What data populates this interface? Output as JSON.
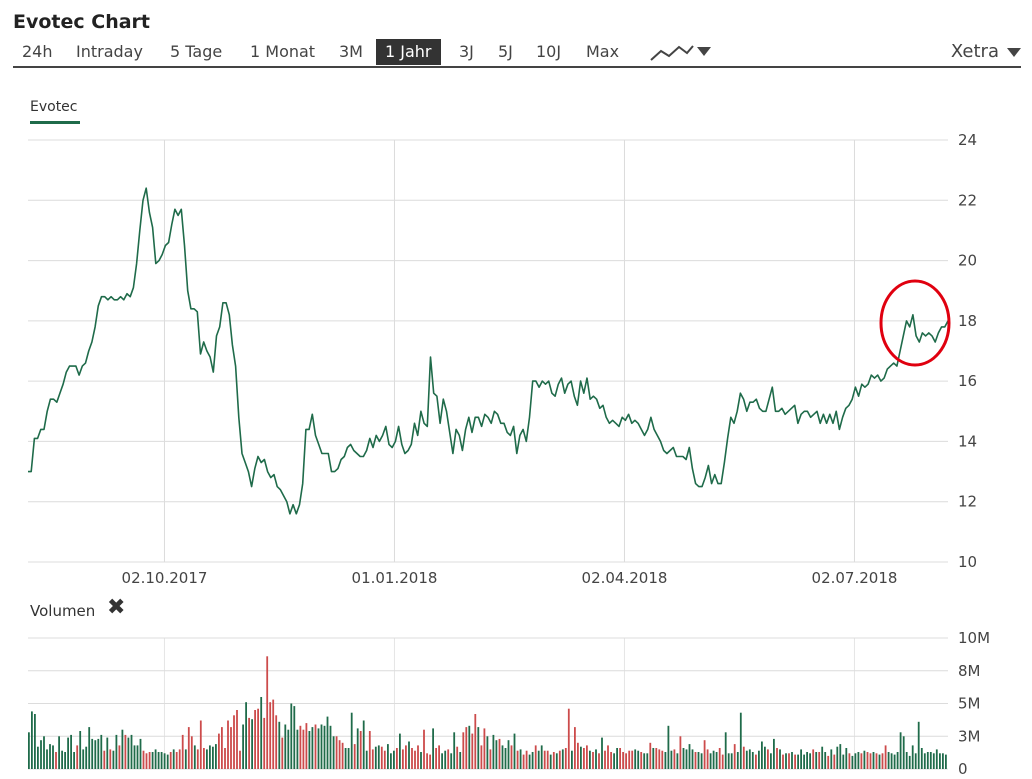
{
  "header": {
    "title": "Evotec Chart"
  },
  "tabs": [
    {
      "label": "24h"
    },
    {
      "label": "Intraday"
    },
    {
      "label": "5 Tage"
    },
    {
      "label": "1 Monat"
    },
    {
      "label": "3M"
    },
    {
      "label": "1 Jahr",
      "active": true
    },
    {
      "label": "3J"
    },
    {
      "label": "5J"
    },
    {
      "label": "10J"
    },
    {
      "label": "Max"
    }
  ],
  "exchange": {
    "label": "Xetra"
  },
  "legend": {
    "label": "Evotec",
    "color": "#1f6b4a"
  },
  "volume": {
    "label": "Volumen",
    "close_icon": "close-icon"
  },
  "chart_data": [
    {
      "type": "line",
      "series": [
        {
          "name": "Evotec",
          "color": "#1f6b4a",
          "values": [
            13.0,
            13.0,
            14.1,
            14.1,
            14.4,
            14.4,
            15.0,
            15.4,
            15.4,
            15.3,
            15.6,
            15.9,
            16.3,
            16.5,
            16.5,
            16.5,
            16.2,
            16.5,
            16.6,
            17.0,
            17.3,
            17.8,
            18.5,
            18.8,
            18.8,
            18.7,
            18.8,
            18.7,
            18.7,
            18.8,
            18.7,
            18.9,
            18.8,
            19.1,
            19.9,
            21.0,
            22.0,
            22.4,
            21.6,
            21.1,
            19.9,
            20.0,
            20.2,
            20.5,
            20.6,
            21.2,
            21.7,
            21.5,
            21.7,
            20.5,
            19.0,
            18.4,
            18.4,
            18.3,
            16.9,
            17.3,
            17.0,
            16.8,
            16.3,
            17.5,
            17.8,
            18.6,
            18.6,
            18.2,
            17.2,
            16.5,
            14.8,
            13.6,
            13.3,
            13.0,
            12.5,
            13.1,
            13.5,
            13.3,
            13.4,
            13.0,
            12.8,
            12.9,
            12.5,
            12.4,
            12.2,
            12.0,
            11.6,
            11.9,
            11.6,
            11.9,
            12.6,
            14.4,
            14.4,
            14.9,
            14.2,
            13.9,
            13.6,
            13.6,
            13.6,
            13.0,
            13.0,
            13.1,
            13.4,
            13.5,
            13.8,
            13.9,
            13.7,
            13.6,
            13.5,
            13.5,
            13.7,
            14.1,
            13.8,
            14.2,
            14.0,
            14.2,
            14.5,
            13.9,
            13.8,
            14.0,
            14.5,
            13.9,
            13.6,
            13.7,
            13.9,
            14.6,
            14.2,
            15.0,
            14.6,
            14.5,
            16.8,
            15.6,
            15.5,
            14.6,
            15.4,
            15.0,
            14.3,
            13.6,
            14.4,
            14.2,
            13.7,
            14.4,
            14.8,
            14.3,
            14.8,
            14.8,
            14.5,
            14.9,
            14.8,
            14.6,
            15.0,
            14.9,
            14.6,
            14.6,
            14.3,
            14.2,
            14.5,
            13.6,
            14.2,
            14.4,
            14.0,
            14.8,
            16.0,
            16.0,
            15.8,
            16.0,
            15.9,
            16.0,
            15.6,
            15.5,
            15.9,
            16.1,
            15.6,
            15.9,
            16.0,
            15.5,
            15.2,
            16.0,
            15.6,
            16.1,
            15.4,
            15.5,
            15.4,
            15.1,
            15.2,
            14.8,
            14.6,
            14.7,
            14.6,
            14.5,
            14.8,
            14.7,
            14.9,
            14.6,
            14.7,
            14.6,
            14.4,
            14.2,
            14.4,
            14.8,
            14.4,
            14.2,
            14.0,
            13.7,
            13.6,
            13.7,
            13.8,
            13.5,
            13.5,
            13.5,
            13.4,
            13.8,
            13.1,
            12.6,
            12.5,
            12.5,
            12.8,
            13.2,
            12.6,
            12.9,
            12.6,
            12.6,
            13.3,
            14.1,
            14.8,
            14.6,
            15.0,
            15.6,
            15.4,
            15.0,
            15.3,
            15.3,
            15.4,
            15.1,
            15.0,
            15.0,
            15.4,
            15.8,
            15.0,
            15.0,
            15.1,
            14.9,
            15.0,
            15.1,
            15.2,
            14.6,
            14.9,
            15.0,
            15.0,
            14.8,
            14.9,
            15.0,
            14.6,
            14.9,
            14.6,
            14.9,
            14.6,
            15.0,
            14.4,
            14.8,
            15.1,
            15.2,
            15.4,
            15.8,
            15.5,
            15.9,
            15.8,
            15.9,
            16.2,
            16.1,
            16.2,
            16.0,
            16.1,
            16.4,
            16.5,
            16.6,
            16.5,
            17.0,
            17.5,
            18.0,
            17.8,
            18.2,
            17.5,
            17.3,
            17.6,
            17.5,
            17.6,
            17.5,
            17.3,
            17.6,
            17.8,
            17.8,
            18.0
          ]
        }
      ],
      "x_start": "2017-08-09",
      "x_end": "2018-08-08",
      "x_ticks": [
        "02.10.2017",
        "01.01.2018",
        "02.04.2018",
        "02.07.2018"
      ],
      "y_ticks": [
        "24",
        "22",
        "20",
        "18",
        "16",
        "14",
        "12",
        "10"
      ],
      "ylim": [
        10,
        24
      ],
      "grid": true,
      "legend": "top-left",
      "annotation": "red circle around last values"
    },
    {
      "type": "bar",
      "series": [
        {
          "name": "Volumen",
          "colors": [
            "#1f6b4a",
            "#cc4b4b"
          ],
          "values": [
            2.8,
            4.4,
            4.2,
            1.7,
            2.2,
            2.5,
            1.5,
            1.9,
            1.8,
            1.3,
            2.5,
            1.4,
            1.3,
            2.4,
            2.6,
            1.3,
            1.8,
            2.9,
            1.5,
            1.7,
            3.2,
            2.3,
            2.2,
            2.3,
            2.6,
            1.4,
            2.4,
            1.5,
            1.4,
            2.6,
            1.8,
            3.0,
            2.6,
            2.4,
            2.6,
            1.8,
            1.8,
            2.3,
            1.4,
            1.2,
            1.3,
            1.3,
            1.5,
            1.3,
            1.3,
            1.2,
            1.1,
            1.3,
            1.5,
            1.3,
            1.5,
            2.6,
            1.5,
            3.2,
            2.5,
            1.8,
            1.5,
            3.7,
            1.6,
            1.5,
            1.8,
            1.7,
            1.9,
            2.7,
            3.2,
            1.6,
            3.7,
            3.2,
            4.1,
            4.5,
            1.4,
            3.4,
            5.1,
            3.9,
            3.8,
            4.5,
            4.6,
            5.5,
            3.9,
            8.6,
            5.1,
            5.3,
            4.1,
            3.6,
            2.4,
            3.4,
            3.0,
            5.0,
            4.8,
            3.0,
            3.3,
            3.0,
            3.5,
            2.9,
            3.2,
            3.4,
            3.1,
            3.4,
            3.3,
            4.0,
            3.3,
            2.5,
            2.5,
            2.2,
            2.0,
            1.6,
            1.6,
            4.3,
            1.9,
            3.1,
            2.9,
            3.7,
            1.4,
            2.9,
            1.5,
            1.7,
            1.8,
            1.7,
            1.4,
            1.9,
            1.2,
            1.4,
            1.6,
            2.7,
            1.5,
            1.8,
            2.1,
            1.6,
            1.4,
            1.8,
            1.3,
            3.0,
            1.2,
            1.1,
            3.1,
            1.6,
            1.8,
            1.2,
            1.4,
            1.5,
            1.2,
            2.8,
            1.7,
            1.3,
            2.8,
            3.2,
            3.3,
            2.7,
            4.2,
            3.2,
            1.8,
            3.1,
            2.5,
            1.5,
            2.6,
            2.2,
            2.3,
            1.8,
            1.6,
            2.2,
            1.8,
            2.7,
            1.4,
            1.5,
            1.1,
            1.4,
            1.1,
            1.3,
            1.8,
            1.4,
            1.8,
            1.4,
            1.4,
            1.1,
            1.3,
            1.2,
            1.4,
            1.5,
            1.6,
            4.6,
            1.4,
            3.2,
            2.0,
            1.7,
            1.6,
            1.8,
            1.4,
            1.3,
            1.5,
            1.2,
            2.4,
            1.4,
            1.8,
            1.3,
            1.2,
            1.6,
            1.6,
            1.3,
            1.2,
            1.4,
            1.4,
            1.5,
            1.4,
            1.3,
            1.2,
            1.2,
            2.0,
            1.6,
            1.6,
            1.5,
            1.4,
            1.3,
            3.3,
            1.4,
            1.5,
            1.2,
            2.5,
            1.6,
            1.5,
            1.9,
            1.5,
            1.3,
            1.3,
            1.2,
            2.2,
            1.5,
            1.2,
            1.4,
            1.3,
            1.6,
            1.1,
            2.8,
            1.2,
            1.2,
            1.9,
            1.3,
            4.3,
            1.7,
            1.4,
            1.5,
            1.3,
            1.1,
            1.4,
            2.1,
            1.7,
            1.5,
            1.2,
            2.3,
            1.6,
            1.5,
            1.1,
            1.2,
            1.2,
            1.3,
            1.1,
            1.1,
            1.5,
            1.1,
            1.3,
            1.2,
            1.5,
            1.3,
            1.3,
            1.7,
            1.3,
            1.0,
            1.5,
            1.1,
            1.7,
            1.9,
            1.1,
            1.6,
            1.2,
            1.0,
            1.2,
            1.3,
            1.2,
            1.4,
            1.3,
            1.2,
            1.3,
            1.2,
            1.1,
            1.2,
            1.8,
            1.3,
            1.2,
            1.1,
            1.3,
            2.8,
            2.5,
            1.3,
            1.0,
            1.8,
            1.2,
            3.6,
            1.6,
            1.2,
            1.3,
            1.3,
            1.2,
            1.5,
            1.2,
            1.2,
            1.1
          ]
        }
      ],
      "y_ticks": [
        "10M",
        "8M",
        "5M",
        "3M",
        "0"
      ],
      "ylim": [
        0,
        10
      ],
      "grid": true
    }
  ]
}
